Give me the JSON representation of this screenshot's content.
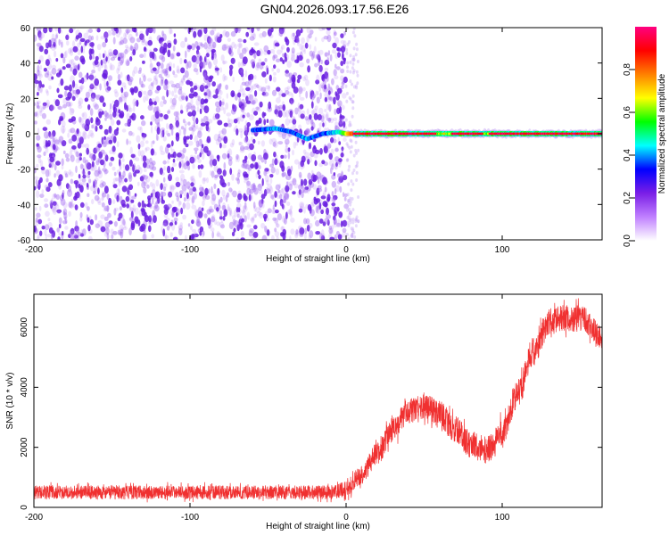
{
  "title": "GN04.2026.093.17.56.E26",
  "colors": {
    "snr_line": "#f03030",
    "scatter_point": "#6a1ee0"
  },
  "colorbar": {
    "label": "Normalized spectral amplitude",
    "ticks": [
      "0.0",
      "0.2",
      "0.4",
      "0.6",
      "0.8"
    ],
    "tick_values": [
      0.0,
      0.2,
      0.4,
      0.6,
      0.8
    ],
    "range": [
      0,
      1
    ],
    "colormap": [
      "#ffffff",
      "#c080ff",
      "#7a1ee6",
      "#0000ff",
      "#00ffff",
      "#00ff00",
      "#ffff00",
      "#ff8000",
      "#ff0000",
      "#ff0080"
    ]
  },
  "chart_data": [
    {
      "type": "heatmap",
      "xlabel": "Height of straight line (km)",
      "ylabel": "Frequency (Hz)",
      "xlim": [
        -200,
        164
      ],
      "ylim": [
        -60,
        60
      ],
      "xticks": [
        -200,
        -100,
        0,
        100
      ],
      "xtick_labels": [
        "-200",
        "-100",
        "0",
        "100"
      ],
      "yticks": [
        60,
        40,
        20,
        0,
        -20,
        -40,
        -60
      ],
      "ytick_labels": [
        "60",
        "40",
        "20",
        "0",
        "-20",
        "-40",
        "-60"
      ],
      "noise_region": {
        "x_range": [
          -200,
          0
        ],
        "frequency_range": [
          -60,
          60
        ],
        "amplitude": 0.15
      },
      "signal_track": [
        {
          "x": -60,
          "freq": 2,
          "amp": 0.3
        },
        {
          "x": -45,
          "freq": 3,
          "amp": 0.35
        },
        {
          "x": -35,
          "freq": 1,
          "amp": 0.3
        },
        {
          "x": -25,
          "freq": -3,
          "amp": 0.35
        },
        {
          "x": -15,
          "freq": 0,
          "amp": 0.3
        },
        {
          "x": -5,
          "freq": 1,
          "amp": 0.4
        },
        {
          "x": 0,
          "freq": 0,
          "amp": 0.6
        },
        {
          "x": 10,
          "freq": 0,
          "amp": 1.0
        },
        {
          "x": 60,
          "freq": 0,
          "amp": 0.95
        },
        {
          "x": 100,
          "freq": 0,
          "amp": 1.0
        },
        {
          "x": 164,
          "freq": 0,
          "amp": 1.0
        }
      ]
    },
    {
      "type": "line",
      "xlabel": "Height of straight line (km)",
      "ylabel": "SNR (10 * v/v)",
      "xlim": [
        -200,
        164
      ],
      "ylim": [
        0,
        7100
      ],
      "xticks": [
        -200,
        -100,
        0,
        100
      ],
      "xtick_labels": [
        "-200",
        "-100",
        "0",
        "100"
      ],
      "yticks": [
        0,
        2000,
        4000,
        6000
      ],
      "ytick_labels": [
        "0",
        "2000",
        "4000",
        "6000"
      ],
      "series": [
        {
          "x": [
            -200,
            -150,
            -100,
            -50,
            -10,
            0,
            10,
            20,
            30,
            40,
            50,
            60,
            70,
            80,
            90,
            100,
            110,
            120,
            130,
            140,
            150,
            164
          ],
          "y": [
            500,
            500,
            500,
            500,
            500,
            600,
            1100,
            1800,
            2600,
            3200,
            3400,
            3100,
            2600,
            2100,
            1900,
            2500,
            3800,
            5200,
            6200,
            6300,
            6300,
            5700
          ],
          "noise_amplitude": [
            230,
            230,
            230,
            230,
            230,
            260,
            330,
            380,
            420,
            420,
            440,
            440,
            440,
            460,
            460,
            470,
            480,
            480,
            450,
            450,
            450,
            400
          ]
        }
      ]
    }
  ]
}
